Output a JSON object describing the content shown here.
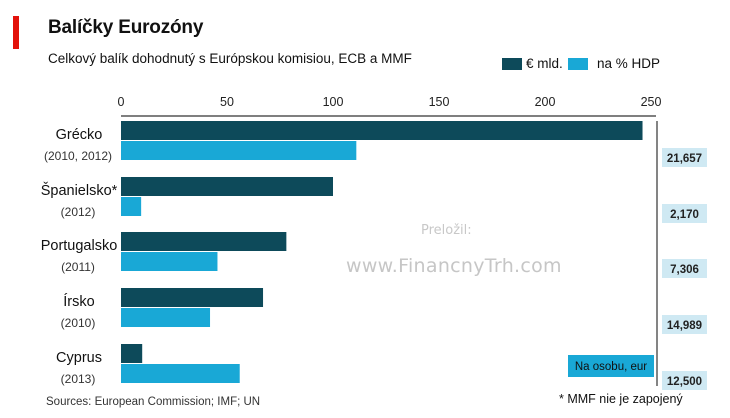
{
  "header": {
    "title": "Balíčky Eurozóny",
    "subtitle": "Celkový balík dohodnutý s Európskou komisiou, ECB a MMF"
  },
  "colors": {
    "accent": "#e3120b",
    "series1": "#0d4a5a",
    "series2": "#19a8d6",
    "valueBox": "#cfe9f3"
  },
  "chart_data": {
    "type": "bar",
    "orientation": "horizontal",
    "categories": [
      "Grécko",
      "Španielsko*",
      "Portugalsko",
      "Írsko",
      "Cyprus"
    ],
    "category_years": [
      "(2010, 2012)",
      "(2012)",
      "(2011)",
      "(2010)",
      "(2013)"
    ],
    "series": [
      {
        "name": "€ mld.",
        "values": [
          246,
          100,
          78,
          67,
          10
        ]
      },
      {
        "name": "na % HDP",
        "values": [
          111,
          9.5,
          45.5,
          42,
          56
        ]
      }
    ],
    "xlim": [
      0,
      250
    ],
    "xticks": [
      0,
      50,
      100,
      150,
      200,
      250
    ],
    "per_capita_label": "Na osobu, eur",
    "per_capita_values": [
      "21,657",
      "2,170",
      "7,306",
      "14,989",
      "12,500"
    ],
    "grid": false,
    "legend_position": "top-right"
  },
  "watermark": {
    "line1": "Preložil:",
    "line2": "www.FinancnyTrh.com"
  },
  "footer": {
    "source": "Sources: European Commission; IMF; UN",
    "note": "* MMF nie je zapojený"
  }
}
